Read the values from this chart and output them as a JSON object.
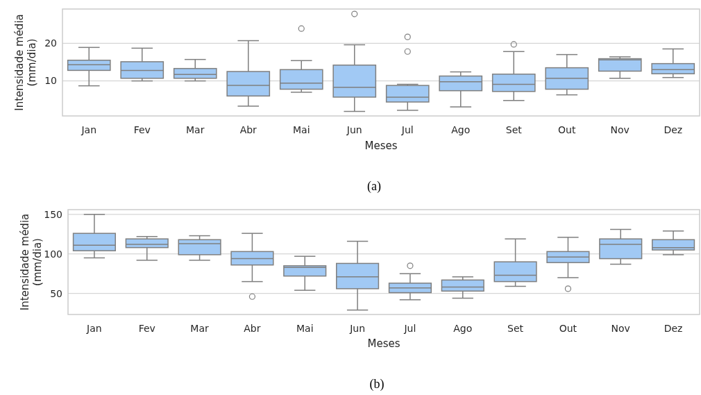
{
  "chart_data": [
    {
      "type": "box",
      "xlabel": "Meses",
      "ylabel": "Intensidade média\n(mm/dia)",
      "categories": [
        "Jan",
        "Fev",
        "Mar",
        "Abr",
        "Mai",
        "Jun",
        "Jul",
        "Ago",
        "Set",
        "Out",
        "Nov",
        "Dez"
      ],
      "color": "#a1c9f4",
      "ylim": [
        0.7,
        29.1
      ],
      "yticks": [
        10,
        20
      ],
      "grid": "y",
      "annotations": [
        "(a)"
      ],
      "boxes": [
        {
          "low": 8.7,
          "q1": 12.8,
          "median": 14.3,
          "q3": 15.5,
          "high": 18.9
        },
        {
          "low": 10.0,
          "q1": 10.7,
          "median": 12.8,
          "q3": 15.1,
          "high": 18.7
        },
        {
          "low": 10.0,
          "q1": 10.7,
          "median": 11.7,
          "q3": 13.3,
          "high": 15.7
        },
        {
          "low": 3.3,
          "q1": 6.0,
          "median": 8.8,
          "q3": 12.5,
          "high": 20.7
        },
        {
          "low": 7.0,
          "q1": 7.8,
          "median": 9.4,
          "q3": 13.0,
          "high": 15.4,
          "outliers": [
            23.9
          ]
        },
        {
          "low": 1.9,
          "q1": 5.7,
          "median": 8.3,
          "q3": 14.2,
          "high": 19.6,
          "outliers": [
            27.8
          ]
        },
        {
          "low": 2.2,
          "q1": 4.4,
          "median": 5.7,
          "q3": 8.8,
          "high": 9.1,
          "outliers": [
            17.8,
            21.7
          ]
        },
        {
          "low": 3.1,
          "q1": 7.4,
          "median": 9.8,
          "q3": 11.3,
          "high": 12.4
        },
        {
          "low": 4.8,
          "q1": 7.2,
          "median": 9.1,
          "q3": 11.8,
          "high": 17.8,
          "outliers": [
            19.7
          ]
        },
        {
          "low": 6.3,
          "q1": 7.8,
          "median": 10.7,
          "q3": 13.5,
          "high": 17.0
        },
        {
          "low": 10.7,
          "q1": 12.6,
          "median": 15.6,
          "q3": 15.9,
          "high": 16.4
        },
        {
          "low": 10.9,
          "q1": 11.9,
          "median": 13.0,
          "q3": 14.6,
          "high": 18.5
        }
      ]
    },
    {
      "type": "box",
      "xlabel": "Meses",
      "ylabel": "Intensidade média\n(mm/dia)",
      "categories": [
        "Jan",
        "Fev",
        "Mar",
        "Abr",
        "Mai",
        "Jun",
        "Jul",
        "Ago",
        "Set",
        "Out",
        "Nov",
        "Dez"
      ],
      "color": "#a1c9f4",
      "ylim": [
        23.4,
        156
      ],
      "yticks": [
        50,
        100,
        150
      ],
      "grid": "y",
      "annotations": [
        "(b)"
      ],
      "boxes": [
        {
          "low": 95,
          "q1": 104,
          "median": 111,
          "q3": 126,
          "high": 150
        },
        {
          "low": 92,
          "q1": 108,
          "median": 112,
          "q3": 119,
          "high": 122
        },
        {
          "low": 92,
          "q1": 99,
          "median": 113,
          "q3": 118,
          "high": 123
        },
        {
          "low": 65,
          "q1": 86,
          "median": 94,
          "q3": 103,
          "high": 126,
          "outliers": [
            46
          ]
        },
        {
          "low": 54,
          "q1": 72,
          "median": 83,
          "q3": 85,
          "high": 97
        },
        {
          "low": 29,
          "q1": 56,
          "median": 71,
          "q3": 88,
          "high": 116
        },
        {
          "low": 42,
          "q1": 51,
          "median": 57,
          "q3": 63,
          "high": 75,
          "outliers": [
            85
          ]
        },
        {
          "low": 44,
          "q1": 53,
          "median": 58,
          "q3": 67,
          "high": 71
        },
        {
          "low": 59,
          "q1": 65,
          "median": 73,
          "q3": 90,
          "high": 119
        },
        {
          "low": 70,
          "q1": 89,
          "median": 96,
          "q3": 103,
          "high": 121,
          "outliers": [
            56
          ]
        },
        {
          "low": 87,
          "q1": 94,
          "median": 112,
          "q3": 119,
          "high": 131
        },
        {
          "low": 99,
          "q1": 105,
          "median": 108,
          "q3": 118,
          "high": 129
        }
      ]
    }
  ]
}
